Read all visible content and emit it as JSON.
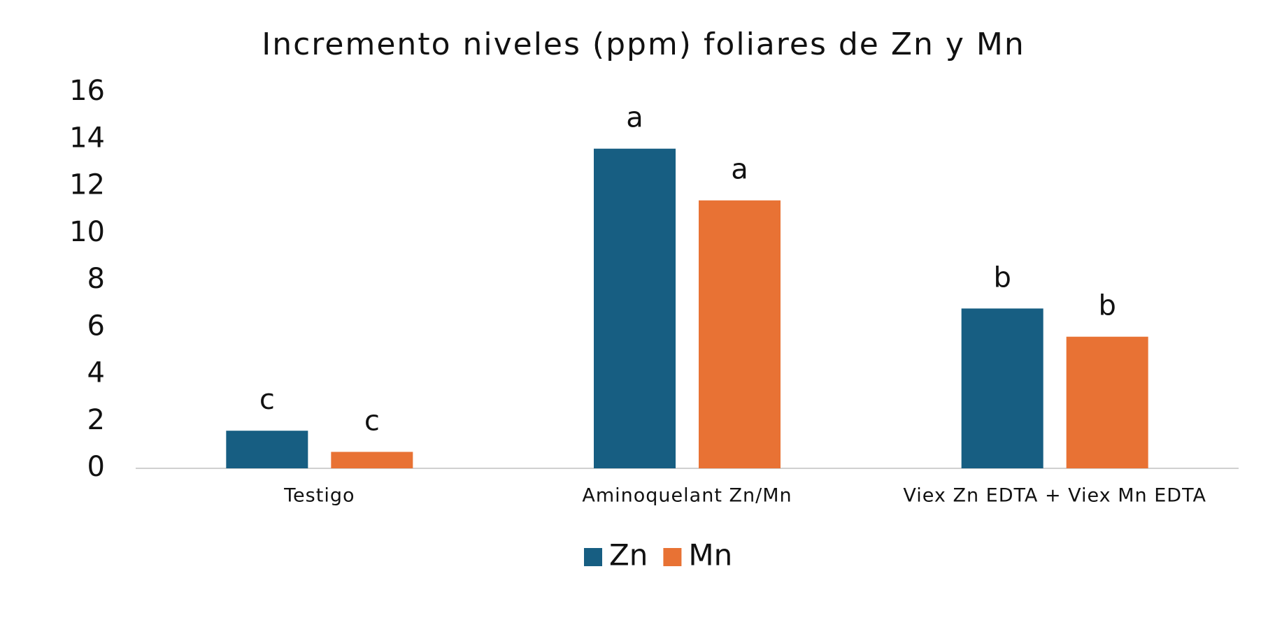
{
  "chart_data": {
    "type": "bar",
    "title": "Incremento niveles (ppm) foliares de Zn y Mn",
    "categories": [
      "Testigo",
      "Aminoquelant Zn/Mn",
      "Viex Zn EDTA + Viex Mn EDTA"
    ],
    "series": [
      {
        "name": "Zn",
        "color": "#175e82",
        "values": [
          1.6,
          13.6,
          6.8
        ],
        "labels": [
          "c",
          "a",
          "b"
        ]
      },
      {
        "name": "Mn",
        "color": "#e87234",
        "values": [
          0.7,
          11.4,
          5.6
        ],
        "labels": [
          "c",
          "a",
          "b"
        ]
      }
    ],
    "ylim": [
      0,
      16
    ],
    "yticks": [
      0,
      2,
      4,
      6,
      8,
      10,
      12,
      14,
      16
    ],
    "grid": false,
    "legend": "bottom"
  }
}
